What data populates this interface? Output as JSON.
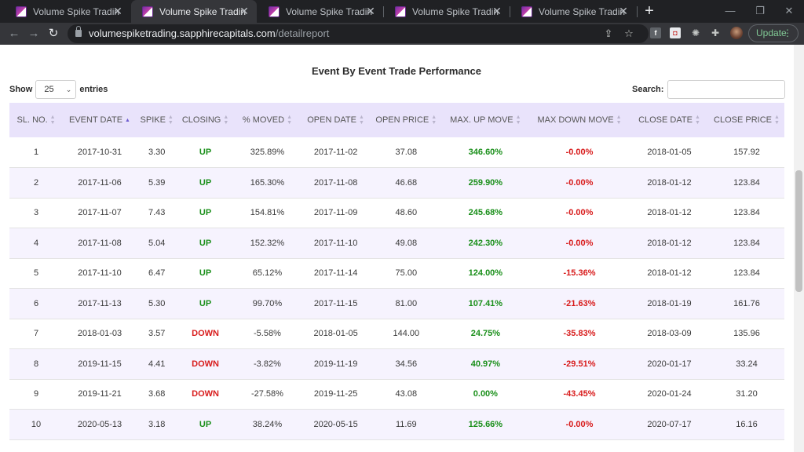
{
  "browser": {
    "tabs": [
      {
        "label": "Volume Spike Trading",
        "active": false
      },
      {
        "label": "Volume Spike Trading",
        "active": true
      },
      {
        "label": "Volume Spike Trading",
        "active": false
      },
      {
        "label": "Volume Spike Trading",
        "active": false
      },
      {
        "label": "Volume Spike Trading",
        "active": false
      }
    ],
    "url_host": "volumespiketrading.sapphirecapitals.com",
    "url_path": "/detailreport",
    "update_label": "Update",
    "accent": "#81c995"
  },
  "page": {
    "title": "Event By Event Trade Performance",
    "show_label": "Show",
    "entries_value": "25",
    "entries_label": "entries",
    "search_label": "Search:",
    "search_value": "",
    "header_bg": "#e9e3fb",
    "stripe_bg": "#f6f3fe",
    "up_color": "#1a8f1a",
    "down_color": "#d81b1b"
  },
  "table": {
    "columns": [
      "SL. NO.",
      "EVENT DATE",
      "SPIKE",
      "CLOSING",
      "% MOVED",
      "OPEN DATE",
      "OPEN PRICE",
      "MAX. UP MOVE",
      "MAX DOWN MOVE",
      "CLOSE DATE",
      "CLOSE PRICE"
    ],
    "sorted_column": "EVENT DATE",
    "rows": [
      [
        "1",
        "2017-10-31",
        "3.30",
        "UP",
        "325.89%",
        "2017-11-02",
        "37.08",
        "346.60%",
        "-0.00%",
        "2018-01-05",
        "157.92"
      ],
      [
        "2",
        "2017-11-06",
        "5.39",
        "UP",
        "165.30%",
        "2017-11-08",
        "46.68",
        "259.90%",
        "-0.00%",
        "2018-01-12",
        "123.84"
      ],
      [
        "3",
        "2017-11-07",
        "7.43",
        "UP",
        "154.81%",
        "2017-11-09",
        "48.60",
        "245.68%",
        "-0.00%",
        "2018-01-12",
        "123.84"
      ],
      [
        "4",
        "2017-11-08",
        "5.04",
        "UP",
        "152.32%",
        "2017-11-10",
        "49.08",
        "242.30%",
        "-0.00%",
        "2018-01-12",
        "123.84"
      ],
      [
        "5",
        "2017-11-10",
        "6.47",
        "UP",
        "65.12%",
        "2017-11-14",
        "75.00",
        "124.00%",
        "-15.36%",
        "2018-01-12",
        "123.84"
      ],
      [
        "6",
        "2017-11-13",
        "5.30",
        "UP",
        "99.70%",
        "2017-11-15",
        "81.00",
        "107.41%",
        "-21.63%",
        "2018-01-19",
        "161.76"
      ],
      [
        "7",
        "2018-01-03",
        "3.57",
        "DOWN",
        "-5.58%",
        "2018-01-05",
        "144.00",
        "24.75%",
        "-35.83%",
        "2018-03-09",
        "135.96"
      ],
      [
        "8",
        "2019-11-15",
        "4.41",
        "DOWN",
        "-3.82%",
        "2019-11-19",
        "34.56",
        "40.97%",
        "-29.51%",
        "2020-01-17",
        "33.24"
      ],
      [
        "9",
        "2019-11-21",
        "3.68",
        "DOWN",
        "-27.58%",
        "2019-11-25",
        "43.08",
        "0.00%",
        "-43.45%",
        "2020-01-24",
        "31.20"
      ],
      [
        "10",
        "2020-05-13",
        "3.18",
        "UP",
        "38.24%",
        "2020-05-15",
        "11.69",
        "125.66%",
        "-0.00%",
        "2020-07-17",
        "16.16"
      ]
    ]
  }
}
